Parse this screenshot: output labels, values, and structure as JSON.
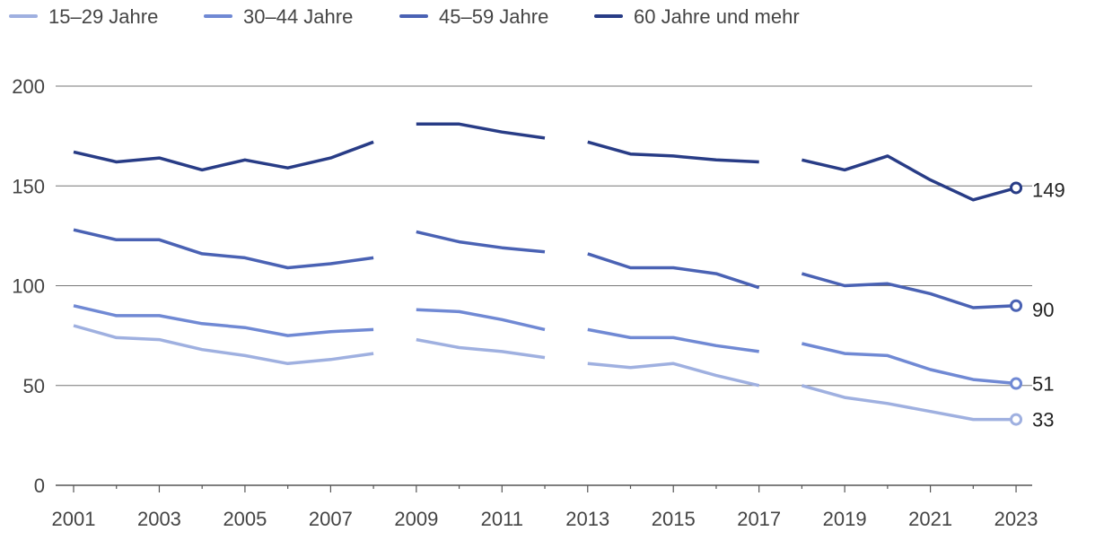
{
  "chart_data": {
    "type": "line",
    "title": "",
    "xlabel": "",
    "ylabel": "",
    "ylim": [
      0,
      200
    ],
    "yticks": [
      0,
      50,
      100,
      150,
      200
    ],
    "x_tick_labels": [
      "2001",
      "2003",
      "2005",
      "2007",
      "2009",
      "2011",
      "2013",
      "2015",
      "2017",
      "2019",
      "2021",
      "2023"
    ],
    "x": [
      2001,
      2002,
      2003,
      2004,
      2005,
      2006,
      2007,
      2008,
      2009,
      2010,
      2011,
      2012,
      2013,
      2014,
      2015,
      2016,
      2017,
      2018,
      2019,
      2020,
      2021,
      2022,
      2023
    ],
    "segment_breaks_after": [
      2008,
      2012,
      2017
    ],
    "legend_position": "top-left",
    "series": [
      {
        "name": "15–29 Jahre",
        "color": "#9fb0e0",
        "values": [
          80,
          74,
          73,
          68,
          65,
          61,
          63,
          66,
          73,
          69,
          67,
          64,
          61,
          59,
          61,
          55,
          50,
          50,
          44,
          41,
          37,
          33,
          33
        ],
        "end_label": "33"
      },
      {
        "name": "30–44 Jahre",
        "color": "#7089d4",
        "values": [
          90,
          85,
          85,
          81,
          79,
          75,
          77,
          78,
          88,
          87,
          83,
          78,
          78,
          74,
          74,
          70,
          67,
          71,
          66,
          65,
          58,
          53,
          51
        ],
        "end_label": "51"
      },
      {
        "name": "45–59 Jahre",
        "color": "#4a62b4",
        "values": [
          128,
          123,
          123,
          116,
          114,
          109,
          111,
          114,
          127,
          122,
          119,
          117,
          116,
          109,
          109,
          106,
          99,
          106,
          100,
          101,
          96,
          89,
          90
        ],
        "end_label": "90"
      },
      {
        "name": "60 Jahre und mehr",
        "color": "#283c86",
        "values": [
          167,
          162,
          164,
          158,
          163,
          159,
          164,
          172,
          181,
          181,
          177,
          174,
          172,
          166,
          165,
          163,
          162,
          163,
          158,
          165,
          153,
          143,
          149
        ],
        "end_label": "149"
      }
    ]
  }
}
